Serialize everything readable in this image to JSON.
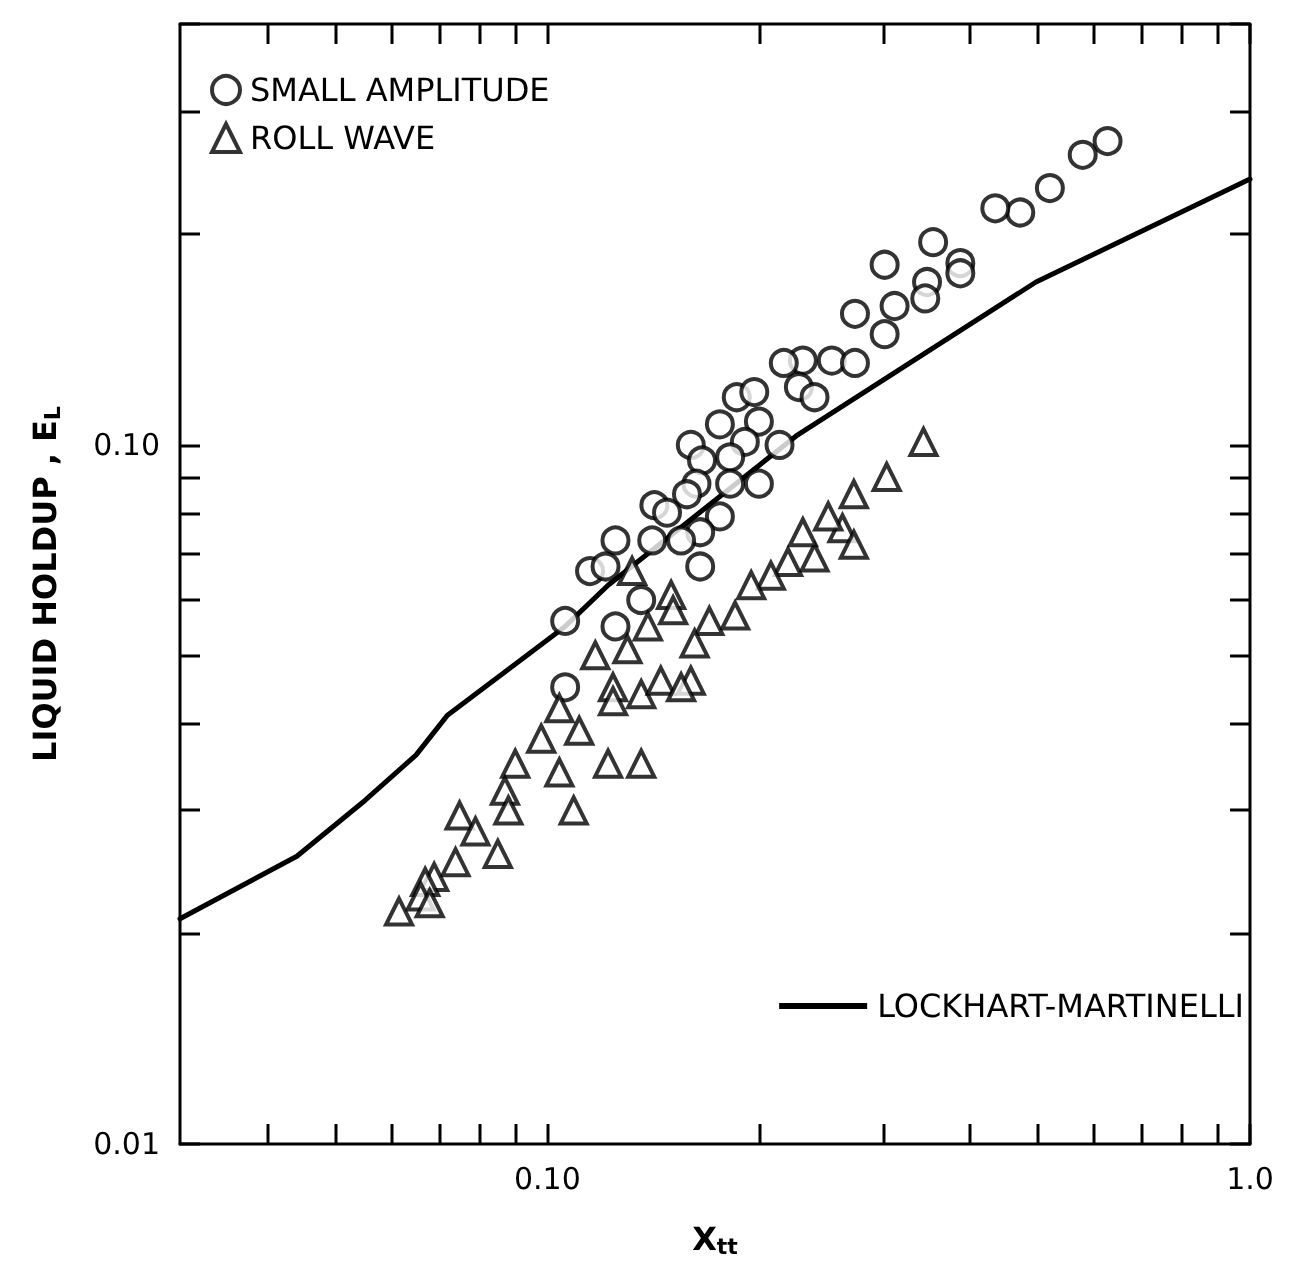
{
  "chart_data": {
    "type": "scatter",
    "xlabel": "X$_{tt}$",
    "ylabel": "LIQUID HOLDUP , E$_{L}$",
    "log": "xy",
    "grid": false,
    "legend": "top left",
    "xlim": [
      0.03,
      1.0
    ],
    "ylim": [
      0.01,
      0.4
    ],
    "xticks": [
      {
        "value": 0.04,
        "label": null
      },
      {
        "value": 0.05,
        "label": null
      },
      {
        "value": 0.06,
        "label": null
      },
      {
        "value": 0.07,
        "label": null
      },
      {
        "value": 0.08,
        "label": null
      },
      {
        "value": 0.09,
        "label": null
      },
      {
        "value": 0.1,
        "label": "0.10"
      },
      {
        "value": 0.2,
        "label": null
      },
      {
        "value": 0.3,
        "label": null
      },
      {
        "value": 0.4,
        "label": null
      },
      {
        "value": 0.5,
        "label": null
      },
      {
        "value": 0.6,
        "label": null
      },
      {
        "value": 0.7,
        "label": null
      },
      {
        "value": 0.8,
        "label": null
      },
      {
        "value": 0.9,
        "label": null
      },
      {
        "value": 1.0,
        "label": "1.0"
      }
    ],
    "yticks": [
      0.01,
      {
        "value": 0.02,
        "label": null
      },
      {
        "value": 0.03,
        "label": null
      },
      {
        "value": 0.04,
        "label": null
      },
      {
        "value": 0.05,
        "label": null
      },
      {
        "value": 0.06,
        "label": null
      },
      {
        "value": 0.07,
        "label": null
      },
      {
        "value": 0.08,
        "label": null
      },
      {
        "value": 0.09,
        "label": null
      },
      {
        "value": 0.1,
        "label": "0.10"
      },
      {
        "value": 0.2,
        "label": null
      },
      {
        "value": 0.3,
        "label": null
      },
      {
        "value": 0.4,
        "label": null
      }
    ],
    "series": [
      {
        "name": "SMALL AMPLITUDE",
        "marker": "circle",
        "color": "#000000",
        "x": [
          0.627,
          0.578,
          0.519,
          0.471,
          0.434,
          0.354,
          0.302,
          0.387,
          0.387,
          0.347,
          0.345,
          0.312,
          0.274,
          0.302,
          0.254,
          0.231,
          0.217,
          0.274,
          0.228,
          0.24,
          0.186,
          0.197,
          0.2,
          0.176,
          0.16,
          0.191,
          0.214,
          0.182,
          0.166,
          0.163,
          0.182,
          0.2,
          0.158,
          0.142,
          0.148,
          0.176,
          0.165,
          0.141,
          0.155,
          0.125,
          0.115,
          0.121,
          0.165,
          0.136,
          0.125,
          0.106,
          0.106
        ],
        "values": [
          0.272,
          0.26,
          0.233,
          0.215,
          0.218,
          0.195,
          0.181,
          0.182,
          0.176,
          0.171,
          0.162,
          0.158,
          0.154,
          0.144,
          0.132,
          0.132,
          0.131,
          0.131,
          0.121,
          0.117,
          0.117,
          0.119,
          0.108,
          0.107,
          0.1,
          0.101,
          0.1,
          0.096,
          0.095,
          0.088,
          0.088,
          0.088,
          0.085,
          0.082,
          0.08,
          0.079,
          0.075,
          0.073,
          0.073,
          0.073,
          0.066,
          0.067,
          0.067,
          0.06,
          0.055,
          0.056,
          0.045
        ]
      },
      {
        "name": "ROLL WAVE",
        "marker": "triangle",
        "color": "#000000",
        "x": [
          0.343,
          0.304,
          0.273,
          0.263,
          0.251,
          0.273,
          0.24,
          0.231,
          0.22,
          0.208,
          0.195,
          0.185,
          0.132,
          0.15,
          0.151,
          0.17,
          0.117,
          0.13,
          0.139,
          0.162,
          0.124,
          0.136,
          0.145,
          0.16,
          0.155,
          0.124,
          0.104,
          0.098,
          0.111,
          0.09,
          0.104,
          0.122,
          0.136,
          0.087,
          0.088,
          0.109,
          0.075,
          0.079,
          0.085,
          0.074,
          0.069,
          0.067,
          0.066,
          0.0615,
          0.068
        ],
        "values": [
          0.101,
          0.09,
          0.085,
          0.076,
          0.079,
          0.072,
          0.069,
          0.075,
          0.068,
          0.065,
          0.063,
          0.057,
          0.066,
          0.061,
          0.058,
          0.056,
          0.05,
          0.051,
          0.055,
          0.052,
          0.045,
          0.044,
          0.046,
          0.046,
          0.045,
          0.043,
          0.042,
          0.038,
          0.039,
          0.035,
          0.034,
          0.035,
          0.035,
          0.032,
          0.03,
          0.03,
          0.0295,
          0.028,
          0.026,
          0.0253,
          0.0241,
          0.0237,
          0.0226,
          0.0215,
          0.0221
        ]
      },
      {
        "name": "LOCKHART-MARTINELLI",
        "type": "line",
        "marker": "none",
        "line_style": "solid",
        "color": "#000000",
        "x": [
          0.03,
          0.044,
          0.055,
          0.065,
          0.072,
          0.106,
          0.122,
          0.226,
          0.496,
          1.0
        ],
        "values": [
          0.021,
          0.0258,
          0.031,
          0.036,
          0.041,
          0.055,
          0.063,
          0.103,
          0.171,
          0.24
        ]
      }
    ]
  }
}
